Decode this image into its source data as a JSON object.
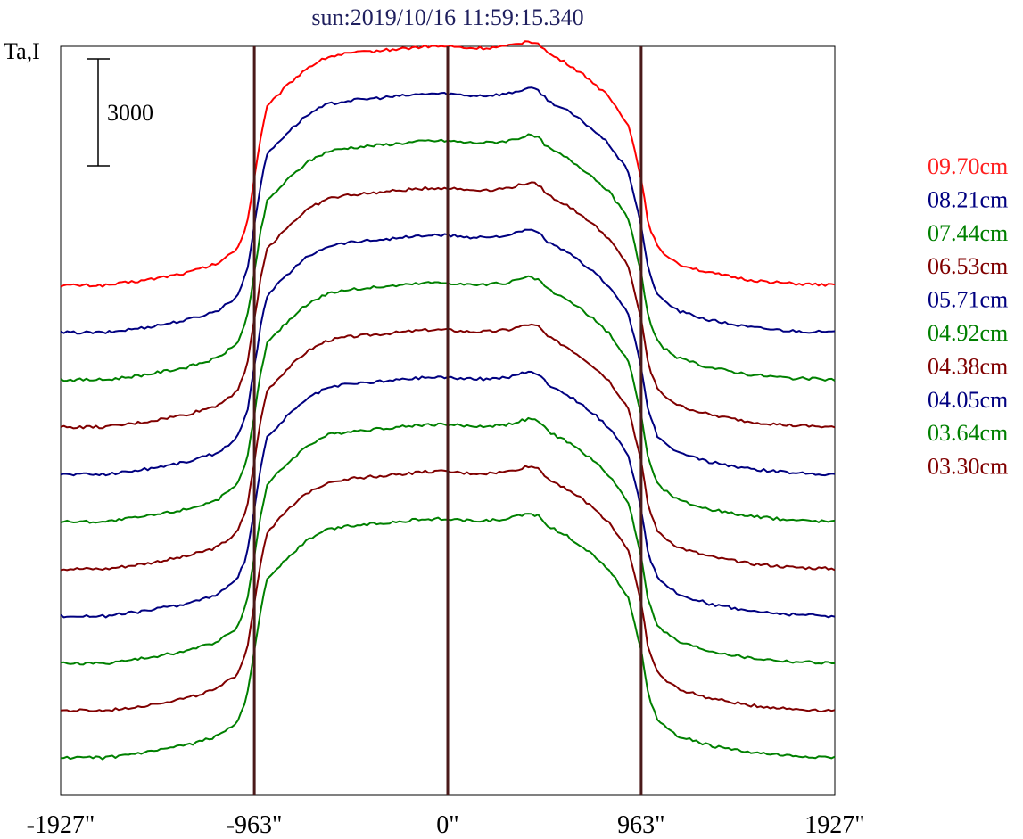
{
  "chart_data": {
    "type": "line",
    "title": "sun:2019/10/16 11:59:15.340",
    "ylabel": "Ta,I",
    "scale_bar_label": "3000",
    "scale_bar_value": 3000,
    "xlim": [
      -1927,
      1927
    ],
    "x_ticks": [
      {
        "value": -1927,
        "label": "-1927\""
      },
      {
        "value": -963,
        "label": "-963\""
      },
      {
        "value": 0,
        "label": "0\""
      },
      {
        "value": 963,
        "label": "963\""
      },
      {
        "value": 1927,
        "label": "1927\""
      }
    ],
    "reference_lines_x": [
      -963,
      0,
      963
    ],
    "grid": false,
    "legend_position": "right",
    "series": [
      {
        "name": "09.70cm",
        "color": "#ff0000",
        "offset": 10
      },
      {
        "name": "08.21cm",
        "color": "#000080",
        "offset": 9
      },
      {
        "name": "07.44cm",
        "color": "#008000",
        "offset": 8
      },
      {
        "name": "06.53cm",
        "color": "#800000",
        "offset": 7
      },
      {
        "name": "05.71cm",
        "color": "#000080",
        "offset": 6
      },
      {
        "name": "04.92cm",
        "color": "#008000",
        "offset": 5
      },
      {
        "name": "04.38cm",
        "color": "#800000",
        "offset": 4
      },
      {
        "name": "04.05cm",
        "color": "#000080",
        "offset": 3
      },
      {
        "name": "03.64cm",
        "color": "#008000",
        "offset": 2
      },
      {
        "name": "03.30cm",
        "color": "#800000",
        "offset": 1
      },
      {
        "name": "",
        "color": "#008000",
        "offset": 0,
        "unlabeled": true
      }
    ],
    "profile_shape": {
      "x": [
        -1927,
        -1700,
        -1500,
        -1300,
        -1150,
        -1050,
        -1000,
        -963,
        -930,
        -900,
        -800,
        -700,
        -600,
        -500,
        -400,
        -300,
        -200,
        -100,
        0,
        100,
        200,
        300,
        400,
        450,
        500,
        600,
        700,
        800,
        900,
        930,
        963,
        1000,
        1050,
        1150,
        1300,
        1500,
        1700,
        1927
      ],
      "y": [
        0,
        0,
        150,
        350,
        600,
        1000,
        1700,
        3000,
        4200,
        5000,
        5600,
        6100,
        6400,
        6500,
        6550,
        6600,
        6650,
        6700,
        6700,
        6650,
        6650,
        6700,
        6850,
        6800,
        6500,
        6200,
        5800,
        5300,
        4500,
        3800,
        3000,
        1700,
        1000,
        600,
        350,
        150,
        50,
        0
      ]
    }
  }
}
